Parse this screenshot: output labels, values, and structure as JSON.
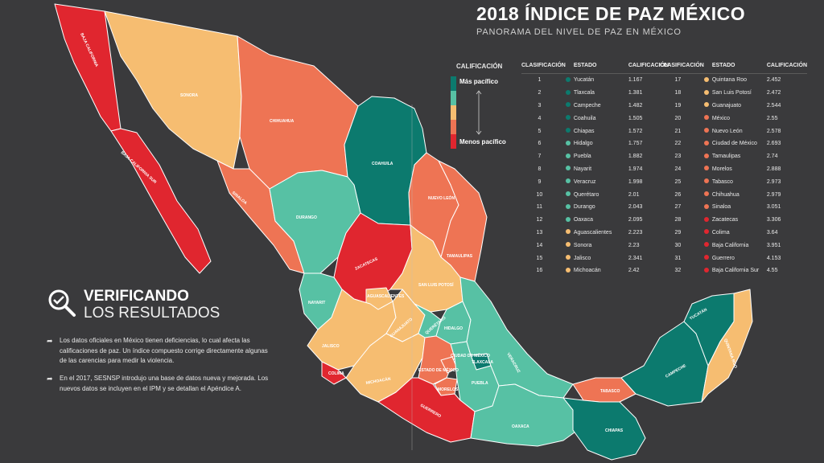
{
  "header": {
    "title": "2018 ÍNDICE DE PAZ MÉXICO",
    "subtitle": "PANORAMA DEL NIVEL DE PAZ EN MÉXICO"
  },
  "legend": {
    "title": "CALIFICACIÓN",
    "top_label": "Más pacífico",
    "bottom_label": "Menos pacífico",
    "colors": [
      "#0c7a6e",
      "#57c1a4",
      "#f6bd71",
      "#ee7454",
      "#e0262f"
    ]
  },
  "table": {
    "headers": {
      "rank": "CLASIFICACIÓN",
      "state": "ESTADO",
      "score": "CALIFICACIÓN"
    },
    "rows": [
      {
        "rank": "1",
        "state": "Yucatán",
        "score": "1.167",
        "color": "#0c7a6e"
      },
      {
        "rank": "2",
        "state": "Tlaxcala",
        "score": "1.381",
        "color": "#0c7a6e"
      },
      {
        "rank": "3",
        "state": "Campeche",
        "score": "1.482",
        "color": "#0c7a6e"
      },
      {
        "rank": "4",
        "state": "Coahuila",
        "score": "1.505",
        "color": "#0c7a6e"
      },
      {
        "rank": "5",
        "state": "Chiapas",
        "score": "1.572",
        "color": "#0c7a6e"
      },
      {
        "rank": "6",
        "state": "Hidalgo",
        "score": "1.757",
        "color": "#57c1a4"
      },
      {
        "rank": "7",
        "state": "Puebla",
        "score": "1.882",
        "color": "#57c1a4"
      },
      {
        "rank": "8",
        "state": "Nayarit",
        "score": "1.974",
        "color": "#57c1a4"
      },
      {
        "rank": "9",
        "state": "Veracruz",
        "score": "1.998",
        "color": "#57c1a4"
      },
      {
        "rank": "10",
        "state": "Querétaro",
        "score": "2.01",
        "color": "#57c1a4"
      },
      {
        "rank": "11",
        "state": "Durango",
        "score": "2.043",
        "color": "#57c1a4"
      },
      {
        "rank": "12",
        "state": "Oaxaca",
        "score": "2.095",
        "color": "#57c1a4"
      },
      {
        "rank": "13",
        "state": "Aguascalientes",
        "score": "2.223",
        "color": "#f6bd71"
      },
      {
        "rank": "14",
        "state": "Sonora",
        "score": "2.23",
        "color": "#f6bd71"
      },
      {
        "rank": "15",
        "state": "Jalisco",
        "score": "2.341",
        "color": "#f6bd71"
      },
      {
        "rank": "16",
        "state": "Michoacán",
        "score": "2.42",
        "color": "#f6bd71"
      },
      {
        "rank": "17",
        "state": "Quintana Roo",
        "score": "2.452",
        "color": "#f6bd71"
      },
      {
        "rank": "18",
        "state": "San Luis Potosí",
        "score": "2.472",
        "color": "#f6bd71"
      },
      {
        "rank": "19",
        "state": "Guanajuato",
        "score": "2.544",
        "color": "#f6bd71"
      },
      {
        "rank": "20",
        "state": "México",
        "score": "2.55",
        "color": "#ee7454"
      },
      {
        "rank": "21",
        "state": "Nuevo León",
        "score": "2.578",
        "color": "#ee7454"
      },
      {
        "rank": "22",
        "state": "Ciudad de México",
        "score": "2.693",
        "color": "#ee7454"
      },
      {
        "rank": "23",
        "state": "Tamaulipas",
        "score": "2.74",
        "color": "#ee7454"
      },
      {
        "rank": "24",
        "state": "Morelos",
        "score": "2.888",
        "color": "#ee7454"
      },
      {
        "rank": "25",
        "state": "Tabasco",
        "score": "2.973",
        "color": "#ee7454"
      },
      {
        "rank": "26",
        "state": "Chihuahua",
        "score": "2.979",
        "color": "#ee7454"
      },
      {
        "rank": "27",
        "state": "Sinaloa",
        "score": "3.051",
        "color": "#ee7454"
      },
      {
        "rank": "28",
        "state": "Zacatecas",
        "score": "3.306",
        "color": "#e0262f"
      },
      {
        "rank": "29",
        "state": "Colima",
        "score": "3.64",
        "color": "#e0262f"
      },
      {
        "rank": "30",
        "state": "Baja California",
        "score": "3.951",
        "color": "#e0262f"
      },
      {
        "rank": "31",
        "state": "Guerrero",
        "score": "4.153",
        "color": "#e0262f"
      },
      {
        "rank": "32",
        "state": "Baja California Sur",
        "score": "4.55",
        "color": "#e0262f"
      }
    ]
  },
  "verify": {
    "title_line1": "VERIFICANDO",
    "title_line2": "LOS RESULTADOS",
    "icon": "magnifier-check-icon",
    "bullet1": "Los datos oficiales en México tienen deficiencias, lo cual afecta las calificaciones de paz. Un índice compuesto corrige directamente algunas de las carencias para medir la violencia.",
    "bullet2": "En el 2017, SESNSP introdujo una base de datos nueva y mejorada. Los nuevos datos se incluyen en el IPM y se detallan el Apéndice A."
  },
  "map_labels": {
    "baja_california": "BAJA CALIFORNIA",
    "baja_california_sur": "BAJA CALIFORNIA SUR",
    "sonora": "SONORA",
    "chihuahua": "CHIHUAHUA",
    "coahuila": "COAHUILA",
    "nuevo_leon": "NUEVO LEÓN",
    "tamaulipas": "TAMAULIPAS",
    "sinaloa": "SINALOA",
    "durango": "DURANGO",
    "zacatecas": "ZACATECAS",
    "nayarit": "NAYARIT",
    "aguascalientes": "AGUASCALIENTES",
    "san_luis_potosi": "SAN LUIS POTOSÍ",
    "jalisco": "JALISCO",
    "guanajuato": "GUANAJUATO",
    "queretaro": "QUERÉTARO",
    "hidalgo": "HIDALGO",
    "colima": "COLIMA",
    "michoacan": "MICHOACÁN",
    "estado_de_mexico": "ESTADO DE MÉXICO",
    "cdmx": "CIUDAD DE MÉXICO",
    "tlaxcala": "TLAXCALA",
    "morelos": "MORELOS",
    "puebla": "PUEBLA",
    "veracruz": "VERACRUZ",
    "guerrero": "GUERRERO",
    "oaxaca": "OAXACA",
    "tabasco": "TABASCO",
    "chiapas": "CHIAPAS",
    "campeche": "CAMPECHE",
    "yucatan": "YUCATÁN",
    "quintana_roo": "QUINTANA ROO"
  }
}
